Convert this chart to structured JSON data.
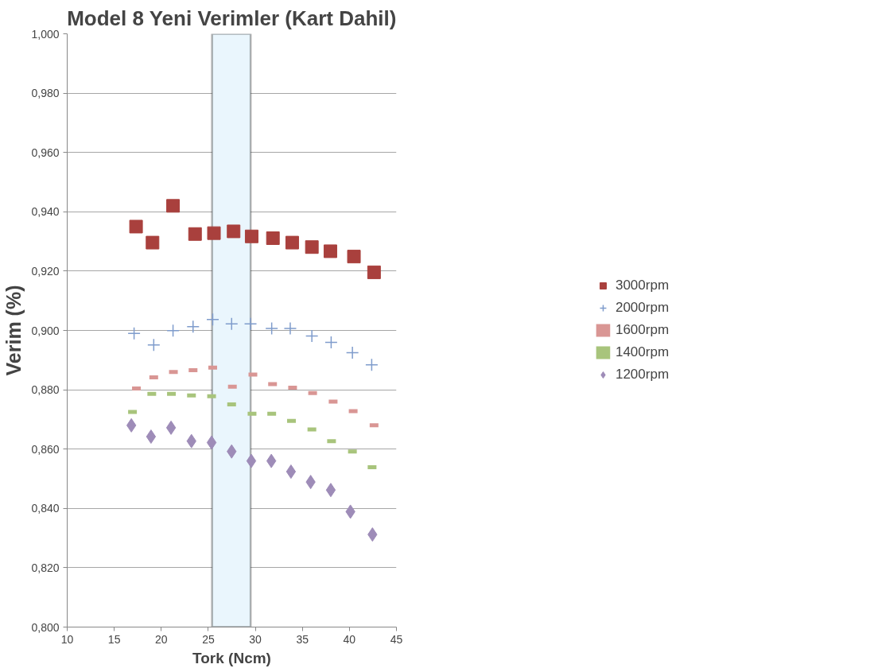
{
  "chart_data": {
    "type": "scatter",
    "title": "Model 8 Yeni Verimler (Kart Dahil)",
    "xlabel": "Tork (Ncm)",
    "ylabel": "Verim (%)",
    "xlim": [
      10,
      45
    ],
    "xticks": [
      10,
      15,
      20,
      25,
      30,
      35,
      40,
      45
    ],
    "ylim": [
      0.8,
      1.0
    ],
    "yticks": [
      {
        "value": 0.8,
        "label": "0,800"
      },
      {
        "value": 0.82,
        "label": "0,820"
      },
      {
        "value": 0.84,
        "label": "0,840"
      },
      {
        "value": 0.86,
        "label": "0,860"
      },
      {
        "value": 0.88,
        "label": "0,880"
      },
      {
        "value": 0.9,
        "label": "0,900"
      },
      {
        "value": 0.92,
        "label": "0,920"
      },
      {
        "value": 0.94,
        "label": "0,940"
      },
      {
        "value": 0.96,
        "label": "0,960"
      },
      {
        "value": 0.98,
        "label": "0,980"
      },
      {
        "value": 1.0,
        "label": "1,000"
      }
    ],
    "grid": "y",
    "legend": "right",
    "bands": [
      {
        "axis": "x",
        "from": 25.4,
        "to": 29.5,
        "color": "#eaf6fd"
      }
    ],
    "series": [
      {
        "name": "3000rpm",
        "color": "#a9403d",
        "marker": "square",
        "x": [
          17.32,
          19.07,
          21.25,
          23.59,
          25.6,
          27.69,
          29.61,
          31.87,
          33.92,
          36.01,
          37.98,
          40.48,
          42.62
        ],
        "values": [
          0.935,
          0.9296,
          0.942,
          0.9325,
          0.9328,
          0.9334,
          0.9317,
          0.9311,
          0.9296,
          0.9281,
          0.9267,
          0.9249,
          0.9196
        ]
      },
      {
        "name": "2000rpm",
        "color": "#7f9ccc",
        "marker": "cross",
        "x": [
          17.11,
          19.2,
          21.25,
          23.38,
          25.47,
          27.48,
          29.49,
          31.74,
          33.71,
          36.01,
          38.06,
          40.32,
          42.37
        ],
        "values": [
          0.899,
          0.8951,
          0.8999,
          0.9013,
          0.9037,
          0.9022,
          0.9022,
          0.9007,
          0.9007,
          0.8981,
          0.896,
          0.8925,
          0.8884
        ]
      },
      {
        "name": "1600rpm",
        "color": "#d99694",
        "x": [
          17.36,
          19.2,
          21.29,
          23.38,
          25.47,
          27.56,
          29.74,
          31.83,
          33.96,
          36.09,
          38.27,
          40.4,
          42.62
        ],
        "values": [
          0.8804,
          0.8842,
          0.886,
          0.8866,
          0.8875,
          0.881,
          0.8851,
          0.8819,
          0.8807,
          0.8789,
          0.876,
          0.8728,
          0.868
        ]
      },
      {
        "name": "1400rpm",
        "color": "#a8c47c",
        "x": [
          16.94,
          18.99,
          21.08,
          23.21,
          25.35,
          27.48,
          29.65,
          31.74,
          33.84,
          36.01,
          38.1,
          40.32,
          42.41
        ],
        "values": [
          0.8725,
          0.8786,
          0.8786,
          0.8781,
          0.8778,
          0.8751,
          0.8719,
          0.8719,
          0.8695,
          0.8666,
          0.8627,
          0.8592,
          0.8539
        ]
      },
      {
        "name": "1200rpm",
        "color": "#9e8cb8",
        "marker": "diamond",
        "x": [
          16.82,
          18.91,
          21.04,
          23.21,
          25.35,
          27.48,
          29.57,
          31.7,
          33.79,
          35.88,
          38.02,
          40.11,
          42.45
        ],
        "values": [
          0.868,
          0.8642,
          0.8672,
          0.8627,
          0.8622,
          0.8592,
          0.856,
          0.856,
          0.8524,
          0.8489,
          0.8462,
          0.8389,
          0.8312
        ]
      }
    ]
  }
}
